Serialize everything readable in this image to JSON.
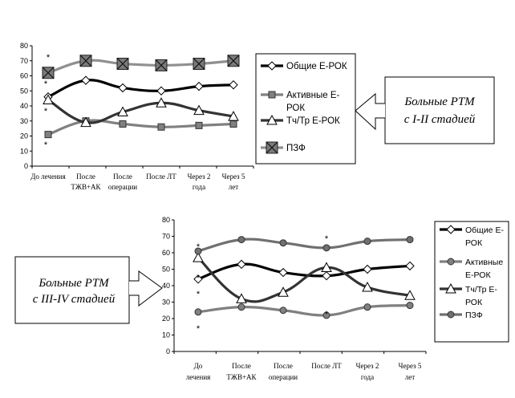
{
  "chart_data": [
    {
      "type": "line",
      "ylim": [
        0,
        80
      ],
      "yticks": [
        "0",
        "10",
        "20",
        "30",
        "40",
        "50",
        "60",
        "70",
        "80"
      ],
      "categories": [
        [
          "До лечения"
        ],
        [
          "После",
          "ТЖВ+АК"
        ],
        [
          "После",
          "операции"
        ],
        [
          "После ЛТ"
        ],
        [
          "Через 2",
          "года"
        ],
        [
          "Через 5",
          "лет"
        ]
      ],
      "series": [
        {
          "name": [
            "Общие Е-РОК"
          ],
          "values": [
            46,
            57,
            52,
            50,
            53,
            54
          ],
          "color": "#000000",
          "marker": "diamond"
        },
        {
          "name": [
            "Активные Е-",
            "РОК"
          ],
          "values": [
            21,
            30,
            28,
            26,
            27,
            28
          ],
          "color": "#808080",
          "marker": "square"
        },
        {
          "name": [
            "Тч/Тр Е-РОК"
          ],
          "values": [
            44,
            29,
            36,
            42,
            37,
            33
          ],
          "color": "#333333",
          "marker": "triangle"
        },
        {
          "name": [
            "ПЗФ"
          ],
          "values": [
            62,
            70,
            68,
            67,
            68,
            70
          ],
          "color": "#909090",
          "marker": "xsquare"
        }
      ],
      "annotations": [
        "*",
        "*",
        "*",
        "*"
      ],
      "callout": [
        "Больные РТМ",
        "с I-II стадией"
      ]
    },
    {
      "type": "line",
      "ylim": [
        0,
        80
      ],
      "yticks": [
        "0",
        "10",
        "20",
        "30",
        "40",
        "50",
        "60",
        "70",
        "80"
      ],
      "categories": [
        [
          "До",
          "лечения"
        ],
        [
          "После",
          "ТЖВ+АК"
        ],
        [
          "После",
          "операции"
        ],
        [
          "После ЛТ"
        ],
        [
          "Через 2",
          "года"
        ],
        [
          "Через 5",
          "лет"
        ]
      ],
      "series": [
        {
          "name": [
            "Общие Е-",
            "РОК"
          ],
          "values": [
            44,
            53,
            48,
            46,
            50,
            52
          ],
          "color": "#000000",
          "marker": "diamond"
        },
        {
          "name": [
            "Активные",
            "Е-РОК"
          ],
          "values": [
            24,
            27,
            25,
            22,
            27,
            28
          ],
          "color": "#808080",
          "marker": "circle"
        },
        {
          "name": [
            "Тч/Тр Е-",
            "РОК"
          ],
          "values": [
            57,
            32,
            36,
            51,
            39,
            34
          ],
          "color": "#333333",
          "marker": "triangle"
        },
        {
          "name": [
            "ПЗФ"
          ],
          "values": [
            61,
            68,
            66,
            63,
            67,
            68
          ],
          "color": "#707070",
          "marker": "circle"
        }
      ],
      "annotations": [
        "*",
        "*",
        "*",
        "*",
        "*",
        "*"
      ],
      "callout": [
        "Больные РТМ",
        "с III-IV стадией"
      ]
    }
  ]
}
